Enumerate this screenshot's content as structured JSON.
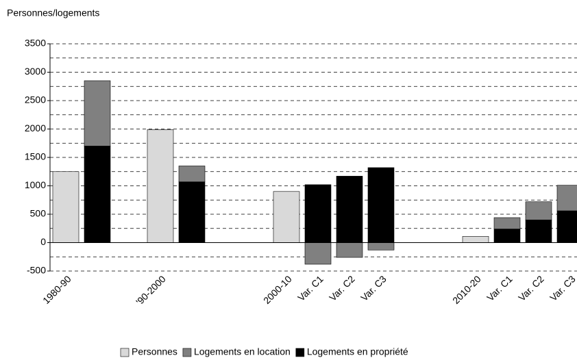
{
  "chart_data": {
    "type": "bar",
    "stacked": true,
    "y_axis_title": "Personnes/logements",
    "categories": [
      "1980-90",
      null,
      null,
      "'90-2000",
      null,
      null,
      null,
      "2000-10",
      "Var. C1",
      "Var. C2",
      "Var. C3",
      null,
      null,
      "2010-20",
      "Var. C1",
      "Var. C2",
      "Var. C3"
    ],
    "series": [
      {
        "name": "Personnes",
        "color": "#d9d9d9",
        "values": [
          1250,
          null,
          null,
          1990,
          null,
          null,
          null,
          900,
          null,
          null,
          null,
          null,
          null,
          110,
          null,
          null,
          null
        ]
      },
      {
        "name": "Logements en location",
        "color": "#808080",
        "values": [
          null,
          1150,
          null,
          null,
          280,
          null,
          null,
          null,
          -380,
          -260,
          -130,
          null,
          null,
          null,
          200,
          320,
          450
        ]
      },
      {
        "name": "Logements en propriété",
        "color": "#000000",
        "values": [
          null,
          1700,
          null,
          null,
          1070,
          null,
          null,
          null,
          1020,
          1170,
          1320,
          null,
          null,
          null,
          240,
          400,
          560
        ]
      }
    ],
    "ylim": [
      -500,
      3500
    ],
    "yticks": [
      -500,
      0,
      500,
      1000,
      1500,
      2000,
      2500,
      3000,
      3500
    ],
    "minor_yticks": [
      -250,
      250,
      750,
      1250,
      1750,
      2250,
      2750,
      3250
    ],
    "grid": true,
    "legend": "bottom"
  }
}
